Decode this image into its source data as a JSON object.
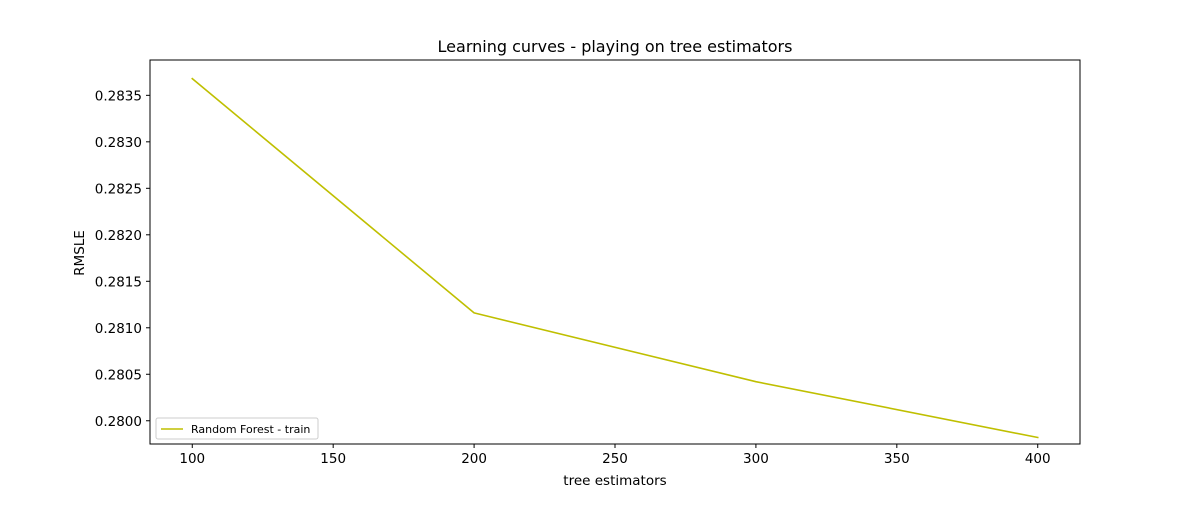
{
  "chart_data": {
    "type": "line",
    "title": "Learning curves - playing on tree estimators",
    "xlabel": "tree estimators",
    "ylabel": "RMSLE",
    "xlim": [
      85,
      415
    ],
    "ylim": [
      0.27975,
      0.28388
    ],
    "x_ticks": [
      100,
      150,
      200,
      250,
      300,
      350,
      400
    ],
    "y_ticks": [
      0.28,
      0.2805,
      0.281,
      0.2815,
      0.282,
      0.2825,
      0.283,
      0.2835
    ],
    "x_tick_labels": [
      "100",
      "150",
      "200",
      "250",
      "300",
      "350",
      "400"
    ],
    "y_tick_labels": [
      "0.2800",
      "0.2805",
      "0.2810",
      "0.2815",
      "0.2820",
      "0.2825",
      "0.2830",
      "0.2835"
    ],
    "grid": false,
    "legend_position": "lower-left",
    "series": [
      {
        "name": "Random Forest - train",
        "color": "#bfbf00",
        "x": [
          100,
          200,
          300,
          400
        ],
        "y": [
          0.28368,
          0.28116,
          0.28042,
          0.27982
        ]
      }
    ]
  }
}
